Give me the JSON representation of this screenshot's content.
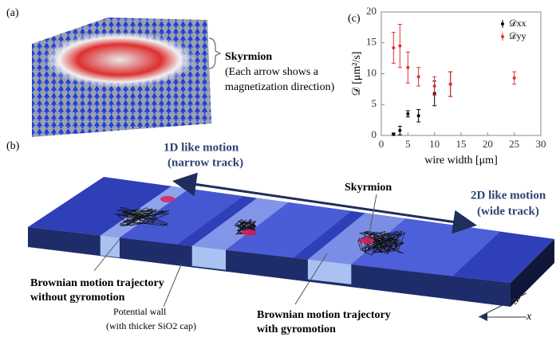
{
  "panel_labels": {
    "a": "(a)",
    "b": "(b)",
    "c": "(c)"
  },
  "panel_a": {
    "title": "Skyrmion",
    "caption": [
      "(Each arrow shows a",
      "magnetization direction)"
    ]
  },
  "panel_b": {
    "arrow_left": [
      "1D like motion",
      "(narrow track)"
    ],
    "arrow_right": [
      "2D like motion",
      "(wide track)"
    ],
    "skyrmion": "Skyrmion",
    "trajectory_without": [
      "Brownian motion trajectory",
      "without gyromotion"
    ],
    "wall": [
      "Potential wall",
      "(with thicker SiO2 cap)"
    ],
    "trajectory_with": [
      "Brownian motion trajectory",
      "with gyromotion"
    ],
    "axis_y": "y",
    "axis_x": "x"
  },
  "chart_data": {
    "type": "scatter",
    "xlabel": "wire width [μm]",
    "ylabel": "𝒟 [μm²/s]",
    "xlim": [
      0,
      30
    ],
    "ylim": [
      0,
      20
    ],
    "xticks": [
      0,
      5,
      10,
      15,
      20,
      25,
      30
    ],
    "yticks": [
      0,
      5,
      10,
      15,
      20
    ],
    "legend": "upper right",
    "series": [
      {
        "name": "𝒟xx",
        "color": "#000000",
        "x": [
          2.3,
          3.5,
          5,
          7,
          10,
          13
        ],
        "values": [
          0.2,
          0.8,
          3.5,
          3.2,
          6.8,
          8.3
        ],
        "errors": [
          0.2,
          0.7,
          0.5,
          1,
          2,
          2
        ]
      },
      {
        "name": "𝒟yy",
        "color": "#e03030",
        "x": [
          2.3,
          3.5,
          5,
          7,
          10,
          13,
          25
        ],
        "values": [
          14.2,
          14.5,
          11,
          9.5,
          8,
          8.3,
          9.3
        ],
        "errors": [
          2.5,
          3.5,
          2.5,
          1.5,
          1.5,
          2,
          1
        ]
      }
    ]
  }
}
